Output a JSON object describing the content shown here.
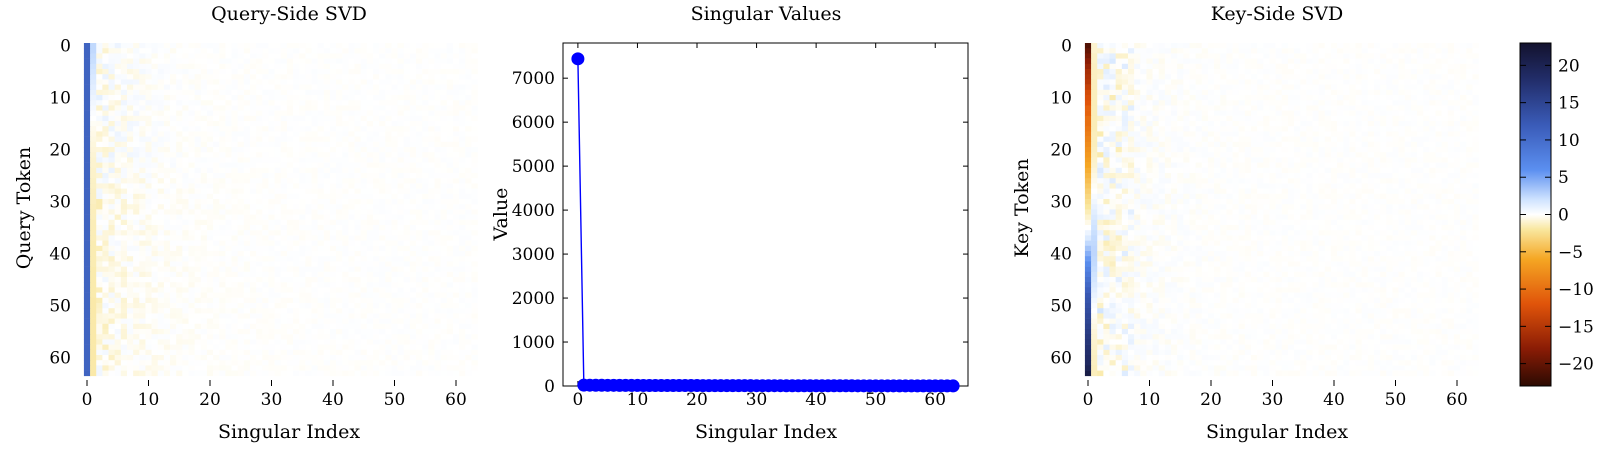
{
  "chart_data": [
    {
      "type": "heatmap",
      "title": "Query-Side SVD",
      "xlabel": "Singular Index",
      "ylabel": "Query Token",
      "xlim": [
        0,
        63
      ],
      "ylim": [
        0,
        63
      ],
      "x_ticks": [
        "0",
        "10",
        "20",
        "30",
        "40",
        "50",
        "60"
      ],
      "y_ticks": [
        "0",
        "10",
        "20",
        "30",
        "40",
        "50",
        "60"
      ],
      "rows": 64,
      "cols": 64,
      "first_column_values": [
        11,
        11,
        11,
        11,
        11,
        11,
        11,
        11,
        11,
        11,
        11,
        11,
        11,
        11,
        11,
        11,
        11,
        11,
        11,
        11,
        11,
        11,
        11,
        11,
        11,
        11,
        11,
        11,
        11,
        11,
        11,
        11,
        11,
        11,
        11,
        11,
        11,
        11,
        11,
        11,
        11,
        11,
        11,
        11,
        11,
        11,
        11,
        11,
        11,
        11,
        11,
        11,
        11,
        11,
        11,
        11,
        11,
        11,
        11,
        11,
        11,
        11,
        11,
        11
      ],
      "second_column_values": [
        2.5,
        2.5,
        2.3,
        2.2,
        2.0,
        1.8,
        1.6,
        1.4,
        1.2,
        1.0,
        0.8,
        0.6,
        0.4,
        0.2,
        0.0,
        -0.2,
        -0.4,
        -0.5,
        -0.6,
        -0.7,
        -0.8,
        -0.9,
        -1.0,
        -1.0,
        -1.1,
        -1.1,
        -1.2,
        -1.2,
        -1.3,
        -1.3,
        -1.3,
        -1.4,
        -1.4,
        -1.4,
        -1.5,
        -1.5,
        -1.5,
        -1.5,
        -1.6,
        -1.6,
        -1.6,
        -1.6,
        -1.6,
        -1.7,
        -1.7,
        -1.7,
        -1.7,
        -1.7,
        -1.7,
        -1.8,
        -1.8,
        -1.8,
        -1.8,
        -1.8,
        -1.8,
        -1.8,
        -1.8,
        -1.8,
        -1.8,
        -1.8,
        -1.8,
        -1.8,
        -1.8,
        -1.8
      ],
      "residual_amplitude": 1.0
    },
    {
      "type": "line",
      "title": "Singular Values",
      "xlabel": "Singular Index",
      "ylabel": "Value",
      "xlim": [
        0,
        63
      ],
      "ylim": [
        0,
        7800
      ],
      "x_ticks": [
        "0",
        "10",
        "20",
        "30",
        "40",
        "50",
        "60"
      ],
      "y_ticks": [
        "0",
        "1000",
        "2000",
        "3000",
        "4000",
        "5000",
        "6000",
        "7000"
      ],
      "line_color": "#0000ff",
      "marker_color": "#0000ff",
      "x": [
        0,
        1,
        2,
        3,
        4,
        5,
        6,
        7,
        8,
        9,
        10,
        11,
        12,
        13,
        14,
        15,
        16,
        17,
        18,
        19,
        20,
        21,
        22,
        23,
        24,
        25,
        26,
        27,
        28,
        29,
        30,
        31,
        32,
        33,
        34,
        35,
        36,
        37,
        38,
        39,
        40,
        41,
        42,
        43,
        44,
        45,
        46,
        47,
        48,
        49,
        50,
        51,
        52,
        53,
        54,
        55,
        56,
        57,
        58,
        59,
        60,
        61,
        62,
        63
      ],
      "values": [
        7440,
        20,
        18,
        17,
        16,
        15,
        15,
        14,
        14,
        13,
        13,
        12,
        12,
        12,
        11,
        11,
        11,
        10,
        10,
        10,
        10,
        9,
        9,
        9,
        9,
        8,
        8,
        8,
        8,
        8,
        7,
        7,
        7,
        7,
        7,
        6,
        6,
        6,
        6,
        6,
        6,
        5,
        5,
        5,
        5,
        5,
        5,
        4,
        4,
        4,
        4,
        4,
        4,
        4,
        3,
        3,
        3,
        3,
        3,
        3,
        2,
        2,
        2,
        2
      ]
    },
    {
      "type": "heatmap",
      "title": "Key-Side SVD",
      "xlabel": "Singular Index",
      "ylabel": "Key Token",
      "xlim": [
        0,
        63
      ],
      "ylim": [
        0,
        63
      ],
      "x_ticks": [
        "0",
        "10",
        "20",
        "30",
        "40",
        "50",
        "60"
      ],
      "y_ticks": [
        "0",
        "10",
        "20",
        "30",
        "40",
        "50",
        "60"
      ],
      "rows": 64,
      "cols": 64,
      "first_column_values": [
        -21,
        -20,
        -19,
        -18,
        -17,
        -16,
        -15.5,
        -15,
        -14,
        -13,
        -12.5,
        -12,
        -11,
        -11,
        -10,
        -10,
        -9.5,
        -9,
        -8.5,
        -8,
        -7.5,
        -7,
        -6.5,
        -6,
        -5.5,
        -5,
        -4.5,
        -4,
        -3.5,
        -3,
        -2.5,
        -2,
        -1.5,
        -1,
        -0.5,
        0,
        0.8,
        1.5,
        2.5,
        3.5,
        4.5,
        5.5,
        6.5,
        7.5,
        8.5,
        9.5,
        10.5,
        11.5,
        12.5,
        13,
        13.5,
        14,
        14.5,
        15,
        15.5,
        16,
        16.5,
        17,
        17.5,
        18,
        18.5,
        19,
        20,
        21
      ],
      "second_column_values": [
        -1.0,
        -1.0,
        -1.2,
        -1.2,
        -1.3,
        -1.3,
        -1.3,
        -1.4,
        -1.4,
        -1.4,
        -1.4,
        -1.5,
        -1.5,
        -1.5,
        -1.5,
        -1.5,
        -1.5,
        -1.4,
        -1.4,
        -1.4,
        -1.3,
        -1.2,
        -1.1,
        -1.0,
        -0.8,
        -0.6,
        -0.4,
        -0.2,
        0.0,
        0.3,
        0.6,
        0.9,
        1.2,
        1.5,
        1.8,
        2.0,
        2.2,
        2.4,
        2.5,
        2.6,
        2.6,
        2.5,
        2.4,
        2.2,
        2.0,
        1.8,
        1.5,
        1.2,
        0.9,
        0.6,
        0.3,
        0.0,
        -0.2,
        -0.4,
        -0.6,
        -0.8,
        -0.9,
        -1.0,
        -1.1,
        -1.2,
        -1.3,
        -1.3,
        -1.4,
        -1.4
      ],
      "residual_amplitude": 1.0
    },
    {
      "type": "colorbar",
      "range": [
        -23,
        23
      ],
      "ticks": [
        "20",
        "15",
        "10",
        "5",
        "0",
        "−5",
        "−10",
        "−15",
        "−20"
      ],
      "tick_values": [
        20,
        15,
        10,
        5,
        0,
        -5,
        -10,
        -15,
        -20
      ],
      "colormap": [
        {
          "v": -23,
          "color": "#2b0a02"
        },
        {
          "v": -18,
          "color": "#8a1c05"
        },
        {
          "v": -12,
          "color": "#e0540a"
        },
        {
          "v": -6,
          "color": "#f5a623"
        },
        {
          "v": -2,
          "color": "#f9e79f"
        },
        {
          "v": 0,
          "color": "#ffffff"
        },
        {
          "v": 2,
          "color": "#cfe3ff"
        },
        {
          "v": 6,
          "color": "#5b8ff0"
        },
        {
          "v": 12,
          "color": "#3a5bb8"
        },
        {
          "v": 18,
          "color": "#222e6b"
        },
        {
          "v": 23,
          "color": "#13122e"
        }
      ]
    }
  ]
}
